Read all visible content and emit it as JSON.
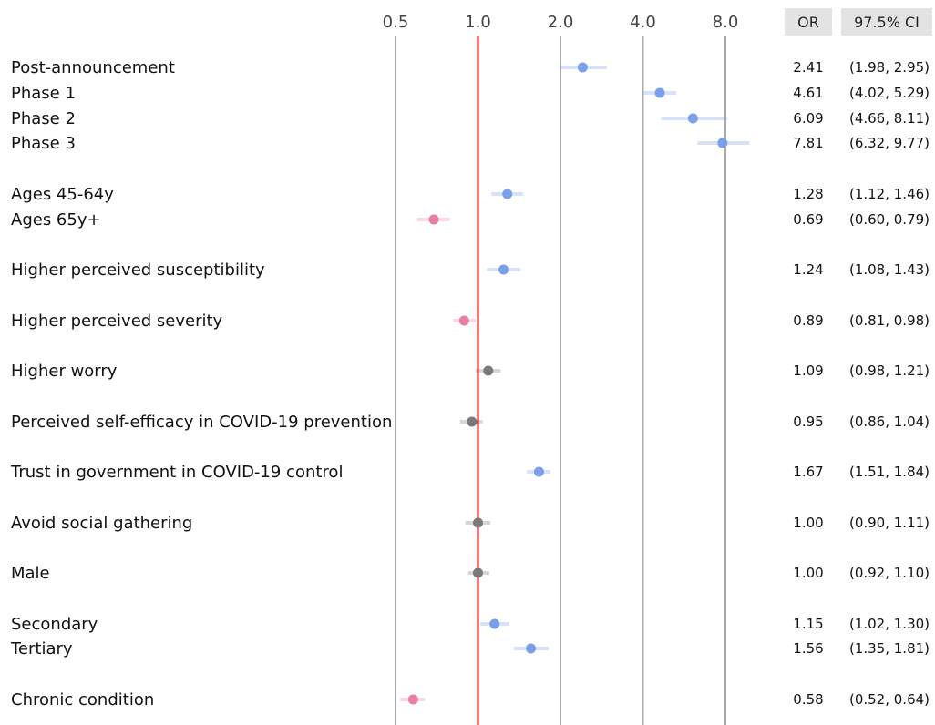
{
  "chart_data": {
    "type": "forest",
    "x_scale": "log2",
    "xlim": [
      0.5,
      8.0
    ],
    "x_ticks": [
      "0.5",
      "1.0",
      "2.0",
      "4.0",
      "8.0"
    ],
    "reference_line": 1.0,
    "columns": {
      "or": "OR",
      "ci": "97.5% CI"
    },
    "colors": {
      "positive": "#7b9fe8",
      "negative": "#e87ea2",
      "neutral": "#7a7a7a",
      "reference": "#cc0000",
      "grid": "#aaaaaa"
    },
    "rows": [
      {
        "label": "Post-announcement",
        "or": 2.41,
        "lo": 1.98,
        "hi": 2.95,
        "or_text": "2.41",
        "ci_text": "(1.98, 2.95)",
        "group": "positive"
      },
      {
        "label": "Phase 1",
        "or": 4.61,
        "lo": 4.02,
        "hi": 5.29,
        "or_text": "4.61",
        "ci_text": "(4.02, 5.29)",
        "group": "positive"
      },
      {
        "label": "Phase 2",
        "or": 6.09,
        "lo": 4.66,
        "hi": 8.11,
        "or_text": "6.09",
        "ci_text": "(4.66, 8.11)",
        "group": "positive"
      },
      {
        "label": "Phase 3",
        "or": 7.81,
        "lo": 6.32,
        "hi": 9.77,
        "or_text": "7.81",
        "ci_text": "(6.32, 9.77)",
        "group": "positive"
      },
      {
        "label": "Ages 45-64y",
        "or": 1.28,
        "lo": 1.12,
        "hi": 1.46,
        "or_text": "1.28",
        "ci_text": "(1.12, 1.46)",
        "group": "positive"
      },
      {
        "label": "Ages 65y+",
        "or": 0.69,
        "lo": 0.6,
        "hi": 0.79,
        "or_text": "0.69",
        "ci_text": "(0.60, 0.79)",
        "group": "negative"
      },
      {
        "label": "Higher perceived susceptibility",
        "or": 1.24,
        "lo": 1.08,
        "hi": 1.43,
        "or_text": "1.24",
        "ci_text": "(1.08, 1.43)",
        "group": "positive"
      },
      {
        "label": "Higher perceived severity",
        "or": 0.89,
        "lo": 0.81,
        "hi": 0.98,
        "or_text": "0.89",
        "ci_text": "(0.81, 0.98)",
        "group": "negative"
      },
      {
        "label": "Higher worry",
        "or": 1.09,
        "lo": 0.98,
        "hi": 1.21,
        "or_text": "1.09",
        "ci_text": "(0.98, 1.21)",
        "group": "neutral"
      },
      {
        "label": "Perceived self-efficacy in COVID-19 prevention",
        "or": 0.95,
        "lo": 0.86,
        "hi": 1.04,
        "or_text": "0.95",
        "ci_text": "(0.86, 1.04)",
        "group": "neutral"
      },
      {
        "label": "Trust in government in COVID-19 control",
        "or": 1.67,
        "lo": 1.51,
        "hi": 1.84,
        "or_text": "1.67",
        "ci_text": "(1.51, 1.84)",
        "group": "positive"
      },
      {
        "label": "Avoid social gathering",
        "or": 1.0,
        "lo": 0.9,
        "hi": 1.11,
        "or_text": "1.00",
        "ci_text": "(0.90, 1.11)",
        "group": "neutral"
      },
      {
        "label": "Male",
        "or": 1.0,
        "lo": 0.92,
        "hi": 1.1,
        "or_text": "1.00",
        "ci_text": "(0.92, 1.10)",
        "group": "neutral"
      },
      {
        "label": "Secondary",
        "or": 1.15,
        "lo": 1.02,
        "hi": 1.3,
        "or_text": "1.15",
        "ci_text": "(1.02, 1.30)",
        "group": "positive"
      },
      {
        "label": "Tertiary",
        "or": 1.56,
        "lo": 1.35,
        "hi": 1.81,
        "or_text": "1.56",
        "ci_text": "(1.35, 1.81)",
        "group": "positive"
      },
      {
        "label": "Chronic condition",
        "or": 0.58,
        "lo": 0.52,
        "hi": 0.64,
        "or_text": "0.58",
        "ci_text": "(0.52, 0.64)",
        "group": "negative"
      }
    ]
  }
}
